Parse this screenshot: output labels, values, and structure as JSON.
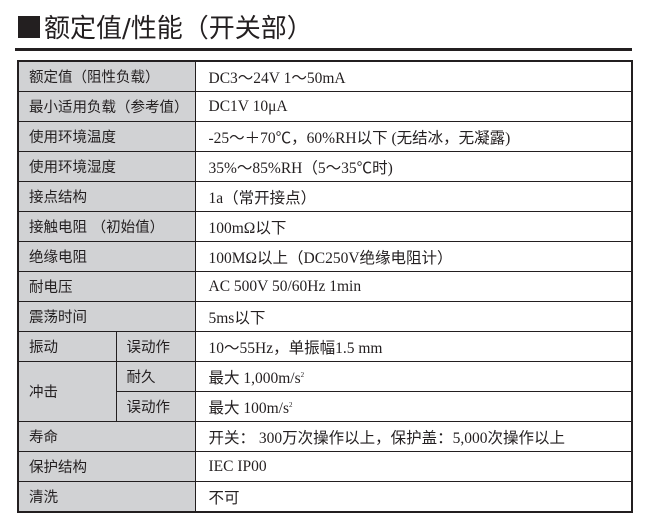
{
  "title": "额定值/性能（开关部）",
  "rows": [
    {
      "label": "额定值（阻性负载）",
      "value": "DC3～24V 1～50mA"
    },
    {
      "label": "最小适用负载（参考值）",
      "value": "DC1V  10μA"
    },
    {
      "label": "使用环境温度",
      "value": "-25～＋70℃，60%RH以下 (无结冰，无凝露)"
    },
    {
      "label": "使用环境湿度",
      "value": "35%～85%RH（5～35℃时)"
    },
    {
      "label": "接点结构",
      "value": "1a（常开接点）"
    },
    {
      "label": "接触电阻 （初始值）",
      "value": "100mΩ以下"
    },
    {
      "label": "绝缘电阻",
      "value": "100MΩ以上（DC250V绝缘电阻计）"
    },
    {
      "label": "耐电压",
      "value": "AC 500V 50/60Hz 1min"
    },
    {
      "label": "震荡时间",
      "value": "5ms以下"
    }
  ],
  "vibration": {
    "label": "振动",
    "sub": "误动作",
    "value": "10～55Hz，单振幅1.5 mm"
  },
  "shock": {
    "label": "冲击",
    "sub1": "耐久",
    "value1": "最大 1,000m/s",
    "sub2": "误动作",
    "value2": "最大 100m/s",
    "exp": "2"
  },
  "rows2": [
    {
      "label": "寿命",
      "value": "开关： 300万次操作以上，保护盖：5,000次操作以上"
    },
    {
      "label": "保护结构",
      "value": "IEC IP00"
    },
    {
      "label": "清洗",
      "value": "不可"
    }
  ]
}
